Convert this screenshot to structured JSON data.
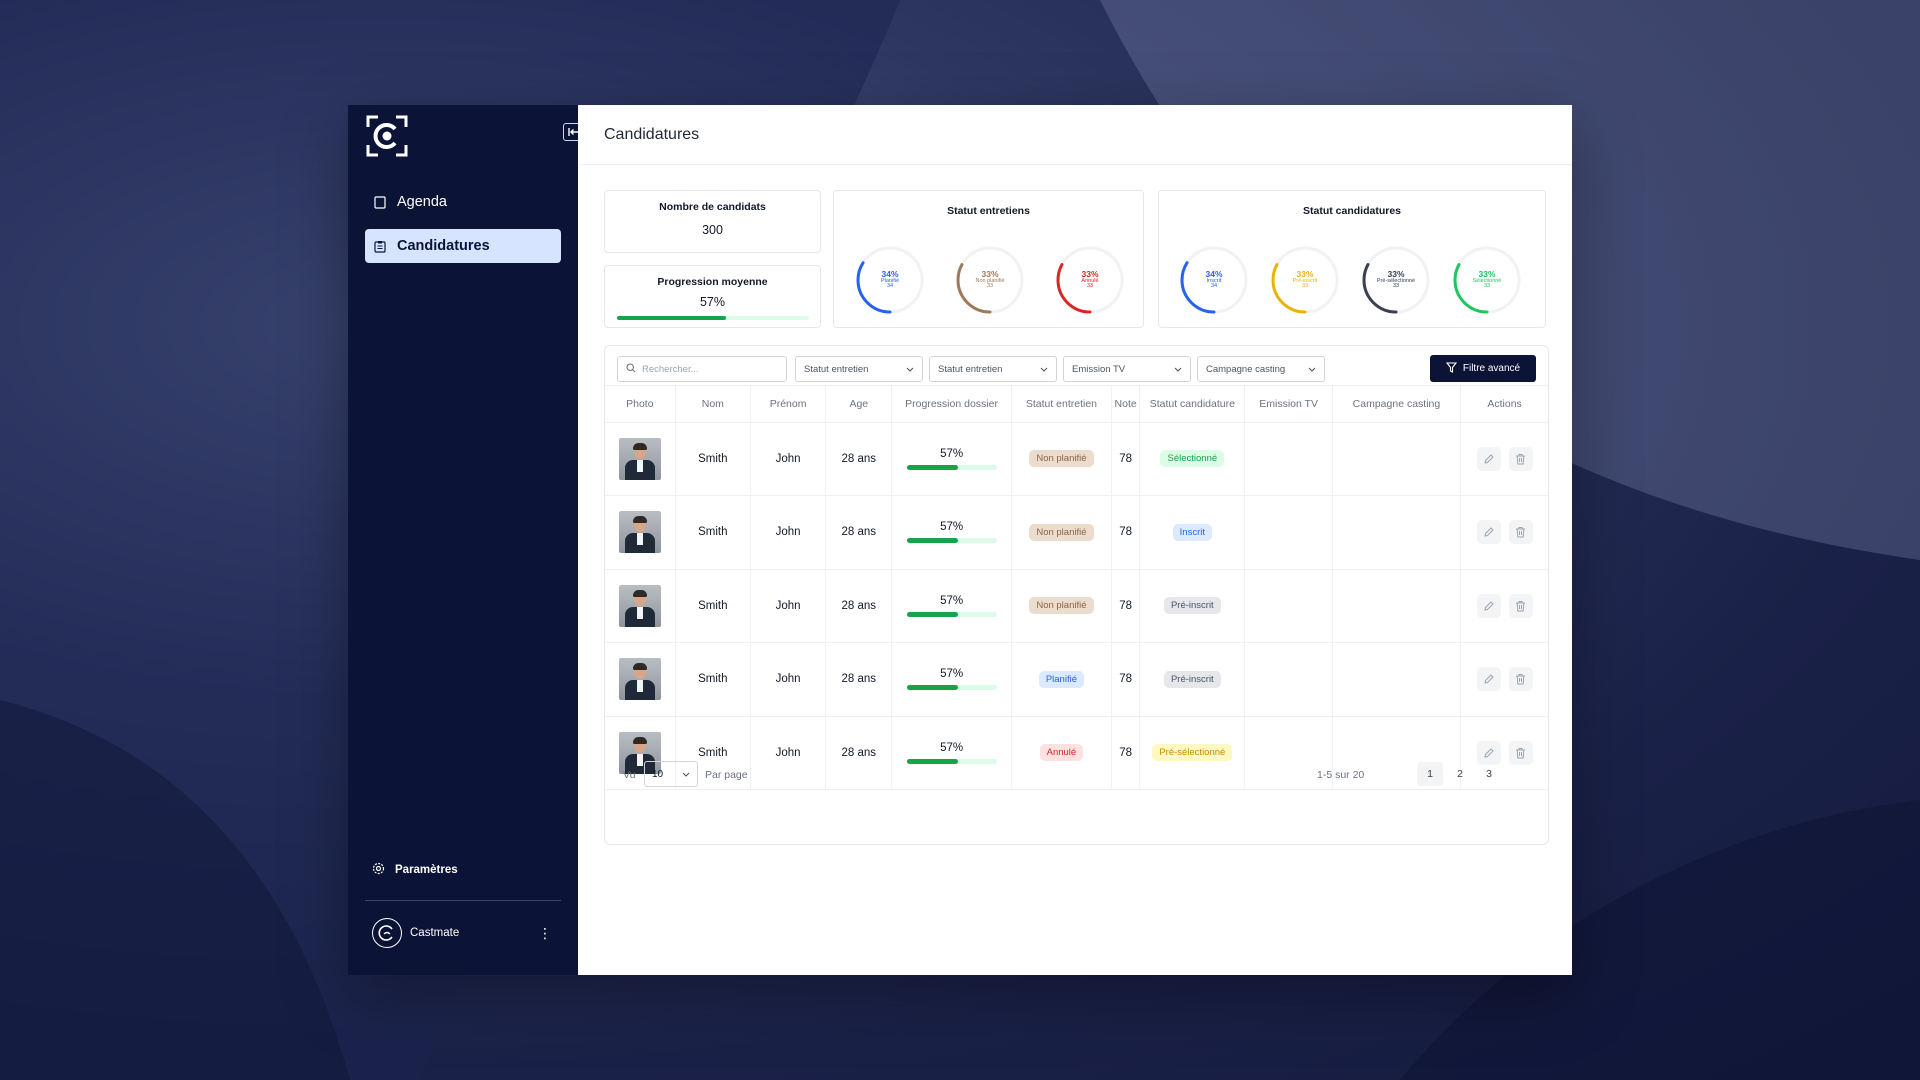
{
  "app": {
    "title": "Candidatures"
  },
  "sidebar": {
    "nav": [
      {
        "label": "Agenda",
        "icon": "calendar-icon",
        "active": false
      },
      {
        "label": "Candidatures",
        "icon": "clipboard-icon",
        "active": true
      }
    ],
    "settings_label": "Paramètres",
    "user_name": "Castmate"
  },
  "stats": {
    "candidates": {
      "title": "Nombre de candidats",
      "value": "300"
    },
    "progress": {
      "title": "Progression moyenne",
      "value": "57%",
      "fraction": 0.57
    },
    "entretiens": {
      "title": "Statut entretiens",
      "items": [
        {
          "percent": "34%",
          "label": "Planifié",
          "count": "34",
          "fraction": 0.34,
          "color": "#2563eb"
        },
        {
          "percent": "33%",
          "label": "Non planifié",
          "count": "33",
          "fraction": 0.33,
          "color": "#a0795a"
        },
        {
          "percent": "33%",
          "label": "Annulé",
          "count": "33",
          "fraction": 0.33,
          "color": "#dc2626"
        }
      ]
    },
    "candidatures": {
      "title": "Statut candidatures",
      "items": [
        {
          "percent": "34%",
          "label": "Inscrit",
          "count": "34",
          "fraction": 0.34,
          "color": "#2563eb"
        },
        {
          "percent": "33%",
          "label": "Pré-inscrit",
          "count": "33",
          "fraction": 0.33,
          "color": "#eab308"
        },
        {
          "percent": "33%",
          "label": "Pré-sélectionné",
          "count": "33",
          "fraction": 0.33,
          "color": "#374151"
        },
        {
          "percent": "33%",
          "label": "Sélectionné",
          "count": "33",
          "fraction": 0.33,
          "color": "#22c55e"
        }
      ]
    }
  },
  "toolbar": {
    "search_placeholder": "Rechercher...",
    "filters": [
      "Statut entretien",
      "Statut entretien",
      "Emission TV",
      "Campagne casting"
    ],
    "advanced_filter_label": "Filtre avancé"
  },
  "table": {
    "columns": [
      "Photo",
      "Nom",
      "Prénom",
      "Age",
      "Progression dossier",
      "Statut entretien",
      "Note",
      "Statut candidature",
      "Emission TV",
      "Campagne casting",
      "Actions"
    ],
    "rows": [
      {
        "nom": "Smith",
        "prenom": "John",
        "age": "28 ans",
        "progress": "57%",
        "progress_fraction": 0.57,
        "entretien": "Non planifié",
        "entretien_style": "brown",
        "note": "78",
        "candidature": "Sélectionné",
        "candidature_style": "green",
        "emission": "",
        "campagne": ""
      },
      {
        "nom": "Smith",
        "prenom": "John",
        "age": "28 ans",
        "progress": "57%",
        "progress_fraction": 0.57,
        "entretien": "Non planifié",
        "entretien_style": "brown",
        "note": "78",
        "candidature": "Inscrit",
        "candidature_style": "blue",
        "emission": "",
        "campagne": ""
      },
      {
        "nom": "Smith",
        "prenom": "John",
        "age": "28 ans",
        "progress": "57%",
        "progress_fraction": 0.57,
        "entretien": "Non planifié",
        "entretien_style": "brown",
        "note": "78",
        "candidature": "Pré-inscrit",
        "candidature_style": "gray",
        "emission": "",
        "campagne": ""
      },
      {
        "nom": "Smith",
        "prenom": "John",
        "age": "28 ans",
        "progress": "57%",
        "progress_fraction": 0.57,
        "entretien": "Planifié",
        "entretien_style": "blue",
        "note": "78",
        "candidature": "Pré-inscrit",
        "candidature_style": "gray",
        "emission": "",
        "campagne": ""
      },
      {
        "nom": "Smith",
        "prenom": "John",
        "age": "28 ans",
        "progress": "57%",
        "progress_fraction": 0.57,
        "entretien": "Annulé",
        "entretien_style": "red",
        "note": "78",
        "candidature": "Pré-sélectionné",
        "candidature_style": "yellow",
        "emission": "",
        "campagne": ""
      }
    ]
  },
  "pagination": {
    "vu_label": "Vu",
    "per_page_value": "10",
    "per_page_label": "Par page",
    "range": "1-5 sur 20",
    "pages": [
      "1",
      "2",
      "3"
    ],
    "current_page": "1"
  },
  "badge_colors": {
    "brown": {
      "bg": "#ecdccd",
      "fg": "#8a6446"
    },
    "blue": {
      "bg": "#dbeafe",
      "fg": "#2563eb"
    },
    "red": {
      "bg": "#fee2e2",
      "fg": "#dc2626"
    },
    "green": {
      "bg": "#dcfce7",
      "fg": "#16a34a"
    },
    "gray": {
      "bg": "#e5e7eb",
      "fg": "#4b5563"
    },
    "yellow": {
      "bg": "#fef9c3",
      "fg": "#ca8a04"
    }
  }
}
